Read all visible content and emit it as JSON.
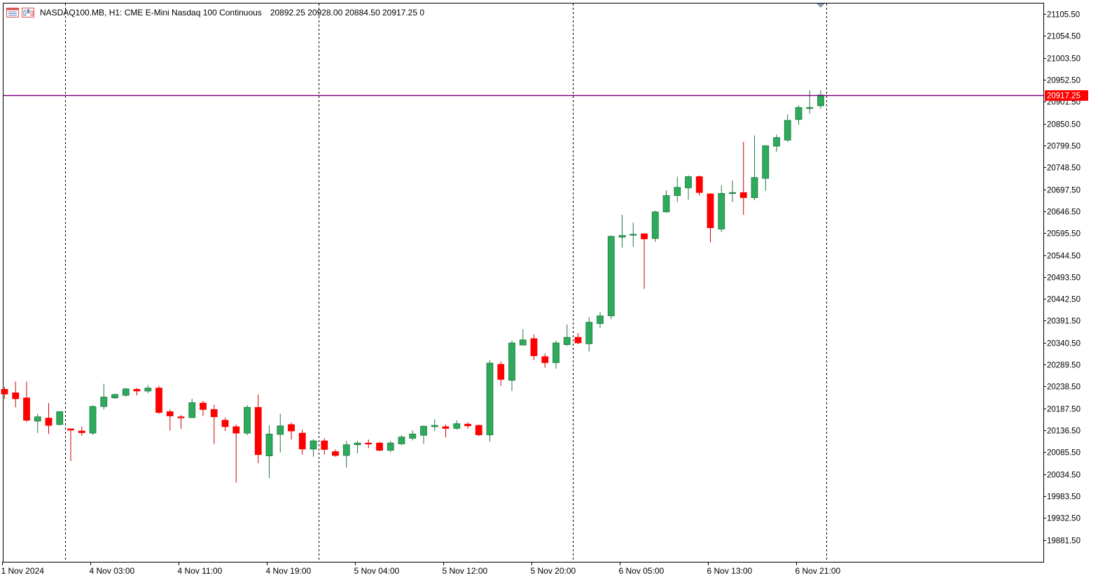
{
  "header": {
    "symbol_line": "NASDAQ100.MB, H1:  CME E-Mini Nasdaq 100 Continuous",
    "ohlc": "20892.25 20928.00 20884.50 20917.25  0"
  },
  "colors": {
    "bull": "#2eaa5c",
    "bear": "#ff0000",
    "wick_bull": "#1c7a3e",
    "wick_bear": "#cc0000",
    "price_line": "#800080",
    "price_tag_bg": "#ff0000",
    "period_sep": "#000000",
    "axis": "#000000"
  },
  "chart_data": {
    "type": "candlestick",
    "title": "NASDAQ100.MB, H1:  CME E-Mini Nasdaq 100 Continuous",
    "current_price": 20917.25,
    "current_price_label": "20917.25",
    "ylim": [
      19830.5,
      21130.0
    ],
    "y_ticks": [
      "21105.50",
      "21054.50",
      "21003.50",
      "20952.50",
      "20901.50",
      "20850.50",
      "20799.50",
      "20748.50",
      "20697.50",
      "20646.50",
      "20595.50",
      "20544.50",
      "20493.50",
      "20442.50",
      "20391.50",
      "20340.50",
      "20289.50",
      "20238.50",
      "20187.50",
      "20136.50",
      "20085.50",
      "20034.50",
      "19983.50",
      "19932.50",
      "19881.50"
    ],
    "x_labels": [
      {
        "index": 0,
        "label": "1 Nov 2024"
      },
      {
        "index": 8,
        "label": "4 Nov 03:00"
      },
      {
        "index": 16,
        "label": "4 Nov 11:00"
      },
      {
        "index": 24,
        "label": "4 Nov 19:00"
      },
      {
        "index": 32,
        "label": "5 Nov 04:00"
      },
      {
        "index": 40,
        "label": "5 Nov 12:00"
      },
      {
        "index": 48,
        "label": "5 Nov 20:00"
      },
      {
        "index": 56,
        "label": "6 Nov 05:00"
      },
      {
        "index": 64,
        "label": "6 Nov 13:00"
      },
      {
        "index": 72,
        "label": "6 Nov 21:00"
      }
    ],
    "period_separators": [
      5.5,
      28.5,
      51.5,
      74.5
    ],
    "candles": [
      {
        "o": 20232,
        "h": 20238,
        "l": 20210,
        "c": 20221
      },
      {
        "o": 20224,
        "h": 20250,
        "l": 20190,
        "c": 20210
      },
      {
        "o": 20212,
        "h": 20250,
        "l": 20156,
        "c": 20160
      },
      {
        "o": 20158,
        "h": 20175,
        "l": 20130,
        "c": 20168
      },
      {
        "o": 20165,
        "h": 20200,
        "l": 20128,
        "c": 20148
      },
      {
        "o": 20150,
        "h": 20178,
        "l": 20148,
        "c": 20180
      },
      {
        "o": 20140,
        "h": 20140,
        "l": 20065,
        "c": 20137
      },
      {
        "o": 20135,
        "h": 20146,
        "l": 20124,
        "c": 20131
      },
      {
        "o": 20130,
        "h": 20195,
        "l": 20126,
        "c": 20192
      },
      {
        "o": 20192,
        "h": 20245,
        "l": 20185,
        "c": 20214
      },
      {
        "o": 20212,
        "h": 20222,
        "l": 20210,
        "c": 20220
      },
      {
        "o": 20218,
        "h": 20235,
        "l": 20215,
        "c": 20233
      },
      {
        "o": 20232,
        "h": 20235,
        "l": 20218,
        "c": 20228
      },
      {
        "o": 20228,
        "h": 20242,
        "l": 20223,
        "c": 20235
      },
      {
        "o": 20235,
        "h": 20240,
        "l": 20175,
        "c": 20178
      },
      {
        "o": 20180,
        "h": 20185,
        "l": 20136,
        "c": 20170
      },
      {
        "o": 20168,
        "h": 20172,
        "l": 20140,
        "c": 20166
      },
      {
        "o": 20166,
        "h": 20210,
        "l": 20166,
        "c": 20201
      },
      {
        "o": 20200,
        "h": 20205,
        "l": 20170,
        "c": 20185
      },
      {
        "o": 20185,
        "h": 20196,
        "l": 20105,
        "c": 20168
      },
      {
        "o": 20160,
        "h": 20166,
        "l": 20135,
        "c": 20145
      },
      {
        "o": 20145,
        "h": 20150,
        "l": 20015,
        "c": 20130
      },
      {
        "o": 20130,
        "h": 20195,
        "l": 20125,
        "c": 20190
      },
      {
        "o": 20190,
        "h": 20220,
        "l": 20060,
        "c": 20080
      },
      {
        "o": 20077,
        "h": 20148,
        "l": 20025,
        "c": 20128
      },
      {
        "o": 20127,
        "h": 20175,
        "l": 20085,
        "c": 20147
      },
      {
        "o": 20150,
        "h": 20155,
        "l": 20115,
        "c": 20135
      },
      {
        "o": 20130,
        "h": 20138,
        "l": 20080,
        "c": 20093
      },
      {
        "o": 20093,
        "h": 20116,
        "l": 20075,
        "c": 20112
      },
      {
        "o": 20112,
        "h": 20118,
        "l": 20080,
        "c": 20092
      },
      {
        "o": 20087,
        "h": 20092,
        "l": 20075,
        "c": 20078
      },
      {
        "o": 20078,
        "h": 20112,
        "l": 20050,
        "c": 20103
      },
      {
        "o": 20103,
        "h": 20112,
        "l": 20083,
        "c": 20107
      },
      {
        "o": 20107,
        "h": 20115,
        "l": 20095,
        "c": 20106
      },
      {
        "o": 20107,
        "h": 20110,
        "l": 20088,
        "c": 20090
      },
      {
        "o": 20090,
        "h": 20112,
        "l": 20085,
        "c": 20107
      },
      {
        "o": 20105,
        "h": 20125,
        "l": 20102,
        "c": 20121
      },
      {
        "o": 20118,
        "h": 20136,
        "l": 20113,
        "c": 20128
      },
      {
        "o": 20125,
        "h": 20148,
        "l": 20105,
        "c": 20146
      },
      {
        "o": 20145,
        "h": 20162,
        "l": 20135,
        "c": 20148
      },
      {
        "o": 20145,
        "h": 20150,
        "l": 20120,
        "c": 20141
      },
      {
        "o": 20141,
        "h": 20160,
        "l": 20138,
        "c": 20152
      },
      {
        "o": 20151,
        "h": 20155,
        "l": 20140,
        "c": 20147
      },
      {
        "o": 20148,
        "h": 20150,
        "l": 20123,
        "c": 20126
      },
      {
        "o": 20126,
        "h": 20300,
        "l": 20110,
        "c": 20293
      },
      {
        "o": 20290,
        "h": 20297,
        "l": 20240,
        "c": 20255
      },
      {
        "o": 20253,
        "h": 20345,
        "l": 20228,
        "c": 20340
      },
      {
        "o": 20335,
        "h": 20372,
        "l": 20335,
        "c": 20347
      },
      {
        "o": 20350,
        "h": 20360,
        "l": 20300,
        "c": 20310
      },
      {
        "o": 20308,
        "h": 20315,
        "l": 20282,
        "c": 20294
      },
      {
        "o": 20294,
        "h": 20345,
        "l": 20280,
        "c": 20340
      },
      {
        "o": 20336,
        "h": 20383,
        "l": 20333,
        "c": 20353
      },
      {
        "o": 20353,
        "h": 20363,
        "l": 20337,
        "c": 20340
      },
      {
        "o": 20338,
        "h": 20400,
        "l": 20320,
        "c": 20388
      },
      {
        "o": 20385,
        "h": 20412,
        "l": 20375,
        "c": 20403
      },
      {
        "o": 20403,
        "h": 20590,
        "l": 20395,
        "c": 20588
      },
      {
        "o": 20586,
        "h": 20638,
        "l": 20562,
        "c": 20590
      },
      {
        "o": 20591,
        "h": 20620,
        "l": 20564,
        "c": 20593
      },
      {
        "o": 20594,
        "h": 20595,
        "l": 20466,
        "c": 20582
      },
      {
        "o": 20583,
        "h": 20648,
        "l": 20575,
        "c": 20645
      },
      {
        "o": 20645,
        "h": 20695,
        "l": 20643,
        "c": 20683
      },
      {
        "o": 20683,
        "h": 20727,
        "l": 20668,
        "c": 20702
      },
      {
        "o": 20701,
        "h": 20730,
        "l": 20673,
        "c": 20727
      },
      {
        "o": 20727,
        "h": 20730,
        "l": 20683,
        "c": 20690
      },
      {
        "o": 20687,
        "h": 20688,
        "l": 20574,
        "c": 20608
      },
      {
        "o": 20605,
        "h": 20707,
        "l": 20598,
        "c": 20688
      },
      {
        "o": 20688,
        "h": 20718,
        "l": 20668,
        "c": 20690
      },
      {
        "o": 20690,
        "h": 20808,
        "l": 20638,
        "c": 20678
      },
      {
        "o": 20678,
        "h": 20823,
        "l": 20672,
        "c": 20725
      },
      {
        "o": 20723,
        "h": 20800,
        "l": 20694,
        "c": 20799
      },
      {
        "o": 20798,
        "h": 20825,
        "l": 20785,
        "c": 20818
      },
      {
        "o": 20812,
        "h": 20872,
        "l": 20808,
        "c": 20858
      },
      {
        "o": 20860,
        "h": 20893,
        "l": 20848,
        "c": 20888
      },
      {
        "o": 20886,
        "h": 20928,
        "l": 20874,
        "c": 20888
      },
      {
        "o": 20892,
        "h": 20928,
        "l": 20885,
        "c": 20917
      }
    ]
  }
}
